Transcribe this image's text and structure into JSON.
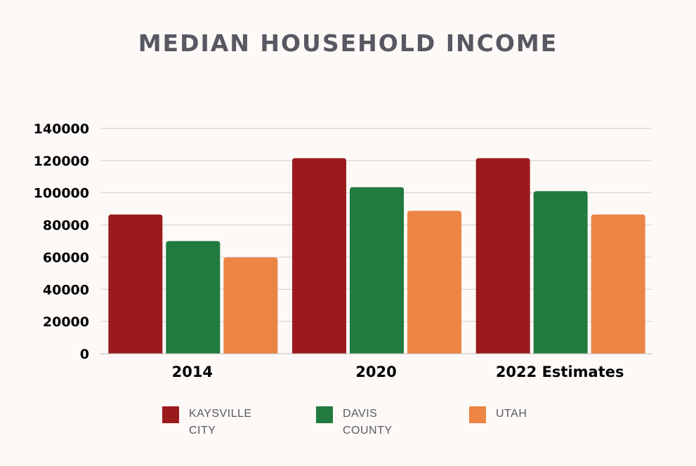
{
  "chart_data": {
    "type": "bar",
    "title": "MEDIAN HOUSEHOLD INCOME",
    "categories": [
      "2014",
      "2020",
      "2022 Estimates"
    ],
    "series": [
      {
        "name": "KAYSVILLE CITY",
        "values": [
          86500,
          121500,
          121500
        ],
        "color": "#9B1B1D"
      },
      {
        "name": "DAVIS COUNTY",
        "values": [
          70000,
          103500,
          101000
        ],
        "color": "#217A3E"
      },
      {
        "name": "UTAH",
        "values": [
          59800,
          88800,
          86500
        ],
        "color": "#EC8444"
      }
    ],
    "ylim": [
      0,
      140000
    ],
    "yticks": [
      "0",
      "20000",
      "40000",
      "60000",
      "80000",
      "100000",
      "120000",
      "140000"
    ],
    "xlabel": "",
    "ylabel": "",
    "grid": true,
    "legend": "bottom"
  },
  "legend": {
    "items": [
      {
        "line1": "KAYSVILLE",
        "line2": "CITY"
      },
      {
        "line1": "DAVIS",
        "line2": "COUNTY"
      },
      {
        "line1": "UTAH",
        "line2": ""
      }
    ]
  }
}
